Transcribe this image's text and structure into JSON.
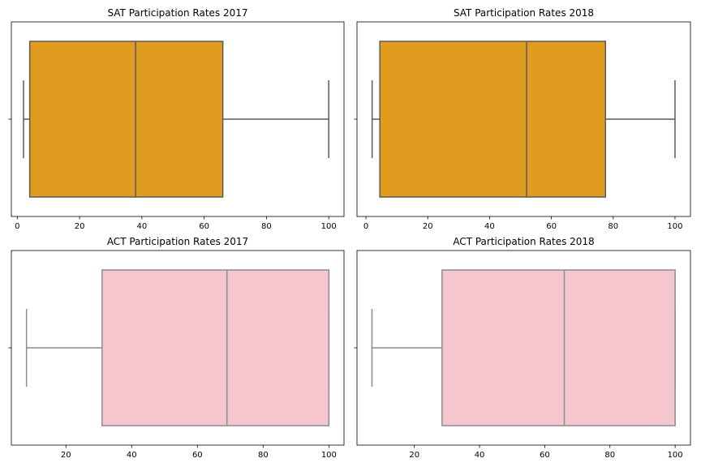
{
  "chart_data": [
    {
      "type": "boxplot",
      "title": "SAT Participation Rates 2017",
      "xlim": [
        -1.9,
        104.9
      ],
      "xticks": [
        0,
        20,
        40,
        60,
        80,
        100
      ],
      "show_xticks": true,
      "color": "#e09c1f",
      "edge_color": "#5a5a5a",
      "box": {
        "whisker_low": 2,
        "q1": 4,
        "median": 38,
        "q3": 66,
        "whisker_high": 100
      }
    },
    {
      "type": "boxplot",
      "title": "SAT Participation Rates 2018",
      "xlim": [
        -2.9,
        105.0
      ],
      "xticks": [
        0,
        20,
        40,
        60,
        80,
        100
      ],
      "show_xticks": true,
      "color": "#e09c1f",
      "edge_color": "#5a5a5a",
      "box": {
        "whisker_low": 2,
        "q1": 4.5,
        "median": 52,
        "q3": 77.5,
        "whisker_high": 100
      }
    },
    {
      "type": "boxplot",
      "title": "ACT Participation Rates 2017",
      "xlim": [
        3.4,
        104.6
      ],
      "xticks": [
        20,
        40,
        60,
        80,
        100
      ],
      "show_xticks": true,
      "color": "#f6c6cf",
      "edge_color": "#8c8c8c",
      "box": {
        "whisker_low": 8,
        "q1": 31,
        "median": 69,
        "q3": 100,
        "whisker_high": 100
      }
    },
    {
      "type": "boxplot",
      "title": "ACT Participation Rates 2018",
      "xlim": [
        2.4,
        104.7
      ],
      "xticks": [
        20,
        40,
        60,
        80,
        100
      ],
      "show_xticks": true,
      "color": "#f6c6cf",
      "edge_color": "#8c8c8c",
      "box": {
        "whisker_low": 7,
        "q1": 28.5,
        "median": 66,
        "q3": 100,
        "whisker_high": 100
      }
    }
  ]
}
